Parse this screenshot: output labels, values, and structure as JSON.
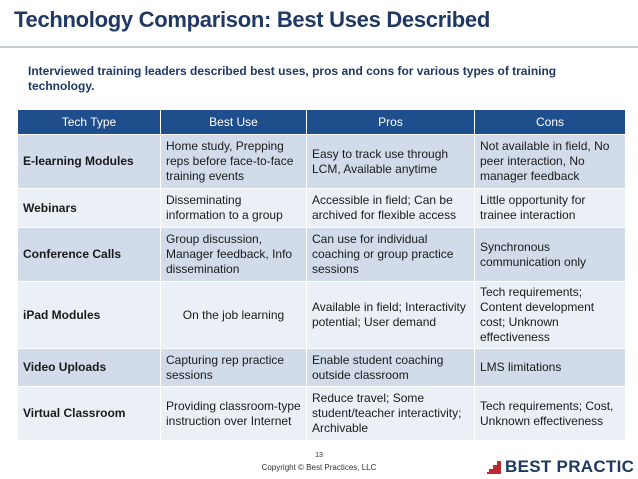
{
  "slide": {
    "title": "Technology Comparison: Best Uses Described",
    "intro": "Interviewed training leaders described best uses, pros and cons for various types of training technology."
  },
  "table": {
    "headers": [
      "Tech Type",
      "Best Use",
      "Pros",
      "Cons"
    ],
    "rows": [
      [
        "E-learning Modules",
        "Home study, Prepping reps before face-to-face training events",
        "Easy to track use through LCM, Available anytime",
        "Not available in field, No peer interaction, No manager feedback"
      ],
      [
        "Webinars",
        "Disseminating information to a group",
        "Accessible in field; Can be archived for flexible access",
        "Little opportunity for trainee interaction"
      ],
      [
        "Conference Calls",
        "Group discussion, Manager feedback, Info dissemination",
        "Can use for individual coaching or group practice sessions",
        "Synchronous communication only"
      ],
      [
        "iPad Modules",
        "On the job learning",
        "Available in field; Interactivity potential; User demand",
        "Tech requirements; Content development cost; Unknown effectiveness"
      ],
      [
        "Video Uploads",
        "Capturing rep practice sessions",
        "Enable student coaching outside classroom",
        "LMS limitations"
      ],
      [
        "Virtual Classroom",
        "Providing classroom-type instruction over Internet",
        "Reduce travel; Some student/teacher interactivity; Archivable",
        "Tech requirements; Cost, Unknown effectiveness"
      ]
    ]
  },
  "footer": {
    "page_number": "13",
    "copyright": "Copyright © Best Practices, LLC",
    "logo_text": "BEST PRACTIC"
  },
  "colors": {
    "title": "#1f3864",
    "header_bg": "#1f4e8c",
    "row_dark": "#d2dbe9",
    "row_light": "#ebeff6",
    "logo_mark": "#c0282d"
  },
  "icons": {
    "logo": "stair-step-logo-icon"
  }
}
